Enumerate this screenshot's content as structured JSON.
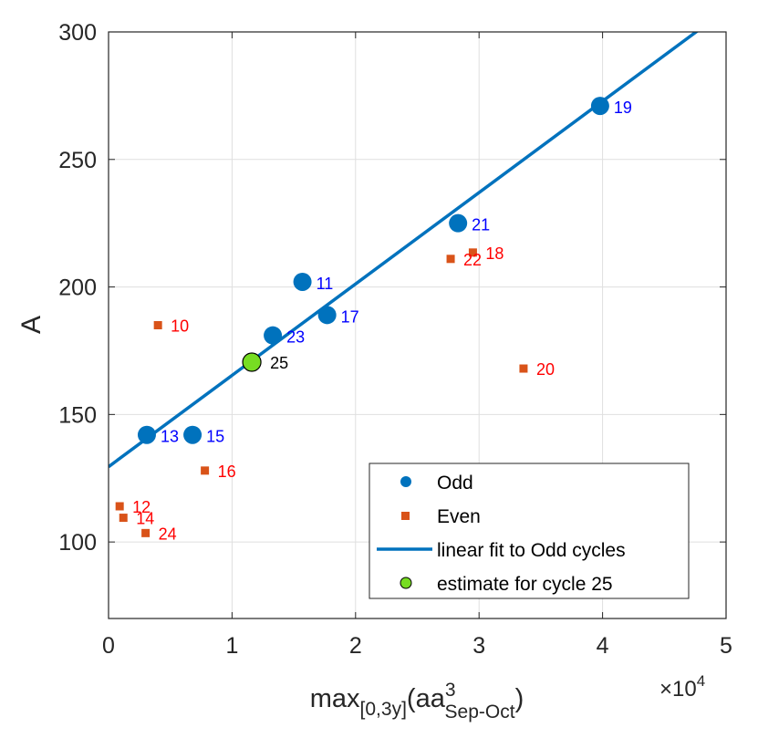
{
  "chart_data": {
    "type": "scatter",
    "title": "",
    "xlabel": {
      "base": "max",
      "sub": "[0,3y]",
      "paren_open": "(aa",
      "sup": "3",
      "sub2": "Sep-Oct",
      "paren_close": ")"
    },
    "ylabel": "A",
    "x_multiplier": {
      "times": "×10",
      "exp": "4"
    },
    "xlim": [
      0,
      5
    ],
    "ylim": [
      70,
      300
    ],
    "xticks": [
      0,
      1,
      2,
      3,
      4,
      5
    ],
    "yticks": [
      100,
      150,
      200,
      250,
      300
    ],
    "grid": true,
    "legend_position": "bottom-right",
    "colors": {
      "odd": "#0072BD",
      "even": "#D95319",
      "odd_label": "#0000FF",
      "even_label": "#FF0000",
      "estimate": "#77DD22",
      "fit": "#0072BD"
    },
    "series": [
      {
        "name": "Odd",
        "marker": "circle",
        "points": [
          {
            "x": 0.31,
            "y": 142,
            "label": "13"
          },
          {
            "x": 0.68,
            "y": 142,
            "label": "15"
          },
          {
            "x": 1.33,
            "y": 181,
            "label": "23"
          },
          {
            "x": 1.57,
            "y": 202,
            "label": "11"
          },
          {
            "x": 1.77,
            "y": 189,
            "label": "17"
          },
          {
            "x": 2.83,
            "y": 225,
            "label": "21"
          },
          {
            "x": 3.98,
            "y": 271,
            "label": "19"
          }
        ]
      },
      {
        "name": "Even",
        "marker": "square",
        "points": [
          {
            "x": 0.4,
            "y": 185,
            "label": "10"
          },
          {
            "x": 0.09,
            "y": 114,
            "label": "12"
          },
          {
            "x": 0.12,
            "y": 109.5,
            "label": "14"
          },
          {
            "x": 0.78,
            "y": 128,
            "label": "16"
          },
          {
            "x": 2.95,
            "y": 213.5,
            "label": "18"
          },
          {
            "x": 3.36,
            "y": 168,
            "label": "20"
          },
          {
            "x": 2.77,
            "y": 211,
            "label": "22"
          },
          {
            "x": 0.3,
            "y": 103.5,
            "label": "24"
          }
        ]
      },
      {
        "name": "linear fit to Odd cycles",
        "type": "line",
        "intercept": 129.5,
        "slope": 35.84
      },
      {
        "name": "estimate for cycle 25",
        "marker": "circle",
        "points": [
          {
            "x": 1.16,
            "y": 170.5,
            "label": "25"
          }
        ]
      }
    ],
    "legend": [
      "Odd",
      "Even",
      "linear fit to Odd cycles",
      "estimate for cycle 25"
    ]
  }
}
